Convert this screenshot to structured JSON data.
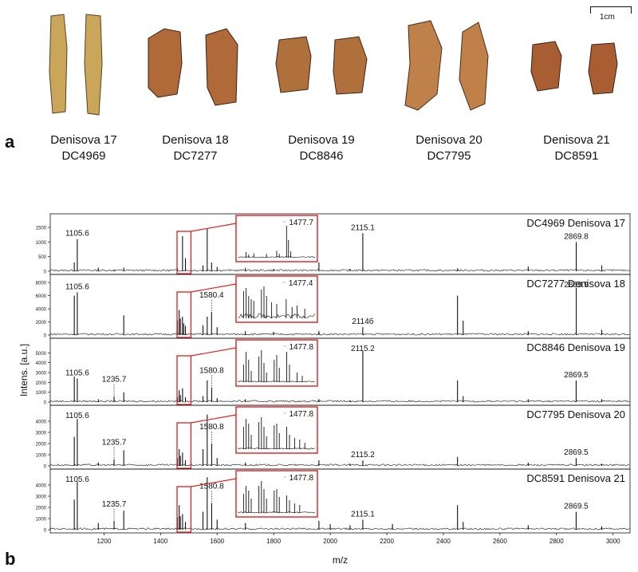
{
  "panel_labels": {
    "a": "a",
    "b": "b"
  },
  "scale_bar_label": "1cm",
  "specimens": [
    {
      "name": "Denisova 17",
      "code": "DC4969",
      "color": "#c9a65a",
      "color_dark": "#8a6a30"
    },
    {
      "name": "Denisova 18",
      "code": "DC7277",
      "color": "#b06a3a",
      "color_dark": "#6a3a1e"
    },
    {
      "name": "Denisova 19",
      "code": "DC8846",
      "color": "#b0703c",
      "color_dark": "#6e4222"
    },
    {
      "name": "Denisova 20",
      "code": "DC7795",
      "color": "#c0804a",
      "color_dark": "#7a4a26"
    },
    {
      "name": "Denisova 21",
      "code": "DC8591",
      "color": "#a85e32",
      "color_dark": "#62351a"
    }
  ],
  "chart_data": {
    "type": "line",
    "xlabel": "m/z",
    "ylabel": "Intens. [a.u.]",
    "xlim": [
      1010,
      3060
    ],
    "xticks": [
      1200,
      1400,
      1600,
      1800,
      2000,
      2200,
      2400,
      2600,
      2800,
      3000
    ],
    "inset_xlim": [
      1440,
      1500
    ],
    "inset_box_xlim": [
      1464,
      1502
    ],
    "accent_color": "#e0201c",
    "panels": [
      {
        "code": "DC4969",
        "name": "Denisova 17",
        "ylim": [
          0,
          1800
        ],
        "yticks": [
          0,
          500,
          1000,
          1500
        ],
        "peaks": [
          [
            1105.6,
            1100
          ],
          [
            1095,
            300
          ],
          [
            1180,
            120
          ],
          [
            1235.7,
            60
          ],
          [
            1270,
            120
          ],
          [
            1460,
            90
          ],
          [
            1477.7,
            1200
          ],
          [
            1488,
            450
          ],
          [
            1550,
            200
          ],
          [
            1565,
            1450
          ],
          [
            1580.4,
            300
          ],
          [
            1600,
            150
          ],
          [
            1700,
            120
          ],
          [
            1800,
            80
          ],
          [
            1960,
            300
          ],
          [
            2070,
            80
          ],
          [
            2115.1,
            1300
          ],
          [
            2450,
            100
          ],
          [
            2700,
            160
          ],
          [
            2869.8,
            1000
          ],
          [
            2960,
            200
          ]
        ],
        "labels": [
          {
            "x": 1105.6,
            "text": "1105.6"
          },
          {
            "x": 2115.1,
            "text": "2115.1"
          },
          {
            "x": 2869.8,
            "text": "2869.8"
          }
        ],
        "inset_label": "1477.7",
        "inset_peaks": [
          [
            1446,
            0.18
          ],
          [
            1448,
            0.1
          ],
          [
            1452,
            0.14
          ],
          [
            1462,
            0.12
          ],
          [
            1470,
            0.22
          ],
          [
            1472,
            0.12
          ],
          [
            1477.7,
            1.0
          ],
          [
            1479.2,
            0.55
          ],
          [
            1481,
            0.2
          ]
        ]
      },
      {
        "code": "DC7277",
        "name": "Denisova 18",
        "ylim": [
          0,
          8500
        ],
        "yticks": [
          0,
          2000,
          4000,
          6000,
          8000
        ],
        "peaks": [
          [
            1095,
            6000
          ],
          [
            1105.6,
            6500
          ],
          [
            1270,
            3000
          ],
          [
            1460,
            2200
          ],
          [
            1466,
            3800
          ],
          [
            1470,
            2500
          ],
          [
            1477.4,
            2800
          ],
          [
            1482,
            1800
          ],
          [
            1488,
            1400
          ],
          [
            1550,
            1500
          ],
          [
            1565,
            2800
          ],
          [
            1580.4,
            3500
          ],
          [
            1600,
            1200
          ],
          [
            1700,
            600
          ],
          [
            1800,
            500
          ],
          [
            1960,
            600
          ],
          [
            2115,
            1200
          ],
          [
            2450,
            6000
          ],
          [
            2470,
            2200
          ],
          [
            2700,
            600
          ],
          [
            2869.9,
            7200
          ],
          [
            2960,
            800
          ]
        ],
        "labels": [
          {
            "x": 1105.6,
            "text": "1105.6"
          },
          {
            "x": 1580.4,
            "text": "1580.4",
            "dotted": true
          },
          {
            "x": 2115,
            "text": "2114б"
          },
          {
            "x": 2869.9,
            "text": "2869.9"
          }
        ],
        "inset_label": "1477.4",
        "inset_peaks": [
          [
            1444,
            0.85
          ],
          [
            1446,
            0.95
          ],
          [
            1448,
            0.7
          ],
          [
            1450,
            0.6
          ],
          [
            1452,
            0.55
          ],
          [
            1458,
            0.9
          ],
          [
            1460,
            1.0
          ],
          [
            1462,
            0.7
          ],
          [
            1466,
            0.5
          ],
          [
            1470,
            0.45
          ],
          [
            1477.4,
            0.6
          ],
          [
            1482,
            0.35
          ],
          [
            1486,
            0.4
          ],
          [
            1492,
            0.3
          ]
        ]
      },
      {
        "code": "DC8846",
        "name": "Denisova 19",
        "ylim": [
          0,
          6000
        ],
        "yticks": [
          0,
          1000,
          2000,
          3000,
          4000,
          5000
        ],
        "peaks": [
          [
            1095,
            2600
          ],
          [
            1105.6,
            2400
          ],
          [
            1180,
            300
          ],
          [
            1235.7,
            600
          ],
          [
            1270,
            1000
          ],
          [
            1460,
            500
          ],
          [
            1466,
            1200
          ],
          [
            1470,
            700
          ],
          [
            1477.8,
            1400
          ],
          [
            1488,
            500
          ],
          [
            1550,
            600
          ],
          [
            1565,
            2200
          ],
          [
            1580.8,
            1500
          ],
          [
            1600,
            400
          ],
          [
            1700,
            300
          ],
          [
            1960,
            300
          ],
          [
            2070,
            150
          ],
          [
            2115.2,
            5200
          ],
          [
            2450,
            2200
          ],
          [
            2470,
            600
          ],
          [
            2700,
            300
          ],
          [
            2869.5,
            2200
          ],
          [
            2960,
            300
          ]
        ],
        "labels": [
          {
            "x": 1105.6,
            "text": "1105.6"
          },
          {
            "x": 1235.7,
            "text": "1235.7",
            "dotted": true
          },
          {
            "x": 1580.8,
            "text": "1580.8",
            "dotted": true
          },
          {
            "x": 2115.2,
            "text": "2115.2"
          },
          {
            "x": 2869.5,
            "text": "2869.5"
          }
        ],
        "inset_label": "1477.8",
        "inset_peaks": [
          [
            1444,
            0.55
          ],
          [
            1446,
            0.95
          ],
          [
            1448,
            0.7
          ],
          [
            1450,
            0.35
          ],
          [
            1456,
            0.8
          ],
          [
            1458,
            1.0
          ],
          [
            1460,
            0.6
          ],
          [
            1462,
            0.3
          ],
          [
            1468,
            0.7
          ],
          [
            1470,
            0.85
          ],
          [
            1472,
            0.45
          ],
          [
            1477.8,
            0.95
          ],
          [
            1480,
            0.55
          ],
          [
            1486,
            0.3
          ],
          [
            1490,
            0.2
          ]
        ]
      },
      {
        "code": "DC7795",
        "name": "Denisova 20",
        "ylim": [
          0,
          5000
        ],
        "yticks": [
          0,
          1000,
          2000,
          3000,
          4000
        ],
        "peaks": [
          [
            1095,
            2600
          ],
          [
            1105.6,
            4200
          ],
          [
            1180,
            300
          ],
          [
            1235.7,
            600
          ],
          [
            1270,
            1400
          ],
          [
            1460,
            700
          ],
          [
            1466,
            1500
          ],
          [
            1470,
            900
          ],
          [
            1477.8,
            1200
          ],
          [
            1488,
            500
          ],
          [
            1550,
            1500
          ],
          [
            1565,
            4600
          ],
          [
            1580.8,
            2000
          ],
          [
            1600,
            700
          ],
          [
            1700,
            300
          ],
          [
            1960,
            500
          ],
          [
            2070,
            200
          ],
          [
            2115.2,
            500
          ],
          [
            2450,
            800
          ],
          [
            2700,
            300
          ],
          [
            2869.5,
            700
          ],
          [
            2960,
            200
          ]
        ],
        "labels": [
          {
            "x": 1105.6,
            "text": "1105.6"
          },
          {
            "x": 1235.7,
            "text": "1235.7",
            "dotted": true
          },
          {
            "x": 1580.8,
            "text": "1580.8",
            "dotted": true
          },
          {
            "x": 2115.2,
            "text": "2115.2"
          },
          {
            "x": 2869.5,
            "text": "2869.5"
          }
        ],
        "inset_label": "1477.8",
        "inset_peaks": [
          [
            1444,
            0.7
          ],
          [
            1446,
            0.95
          ],
          [
            1448,
            0.8
          ],
          [
            1450,
            0.45
          ],
          [
            1456,
            0.85
          ],
          [
            1458,
            1.0
          ],
          [
            1460,
            0.7
          ],
          [
            1462,
            0.4
          ],
          [
            1468,
            0.75
          ],
          [
            1470,
            0.8
          ],
          [
            1472,
            0.5
          ],
          [
            1477.8,
            0.7
          ],
          [
            1480,
            0.45
          ],
          [
            1484,
            0.35
          ],
          [
            1488,
            0.3
          ],
          [
            1492,
            0.2
          ]
        ]
      },
      {
        "code": "DC8591",
        "name": "Denisova 21",
        "ylim": [
          0,
          5000
        ],
        "yticks": [
          0,
          1000,
          2000,
          3000,
          4000
        ],
        "peaks": [
          [
            1095,
            2700
          ],
          [
            1105.6,
            4300
          ],
          [
            1180,
            600
          ],
          [
            1235.7,
            800
          ],
          [
            1270,
            1700
          ],
          [
            1460,
            1100
          ],
          [
            1466,
            2200
          ],
          [
            1470,
            1200
          ],
          [
            1477.8,
            1400
          ],
          [
            1488,
            700
          ],
          [
            1550,
            1600
          ],
          [
            1565,
            4700
          ],
          [
            1580.8,
            2400
          ],
          [
            1600,
            900
          ],
          [
            1700,
            600
          ],
          [
            1960,
            800
          ],
          [
            2000,
            500
          ],
          [
            2070,
            400
          ],
          [
            2115.1,
            900
          ],
          [
            2220,
            500
          ],
          [
            2450,
            2200
          ],
          [
            2470,
            700
          ],
          [
            2700,
            400
          ],
          [
            2869.5,
            1600
          ],
          [
            2960,
            300
          ]
        ],
        "labels": [
          {
            "x": 1105.6,
            "text": "1105.6"
          },
          {
            "x": 1235.7,
            "text": "1235.7",
            "dotted": true
          },
          {
            "x": 1580.8,
            "text": "1580.8",
            "dotted": true
          },
          {
            "x": 2115.1,
            "text": "2115.1"
          },
          {
            "x": 2869.5,
            "text": "2869.5"
          }
        ],
        "inset_label": "1477.8",
        "inset_peaks": [
          [
            1444,
            0.6
          ],
          [
            1446,
            0.85
          ],
          [
            1448,
            0.7
          ],
          [
            1450,
            0.45
          ],
          [
            1456,
            0.85
          ],
          [
            1458,
            1.0
          ],
          [
            1460,
            0.75
          ],
          [
            1462,
            0.45
          ],
          [
            1468,
            0.7
          ],
          [
            1470,
            0.75
          ],
          [
            1472,
            0.5
          ],
          [
            1477.8,
            0.55
          ],
          [
            1480,
            0.4
          ],
          [
            1484,
            0.3
          ],
          [
            1488,
            0.25
          ]
        ]
      }
    ]
  }
}
